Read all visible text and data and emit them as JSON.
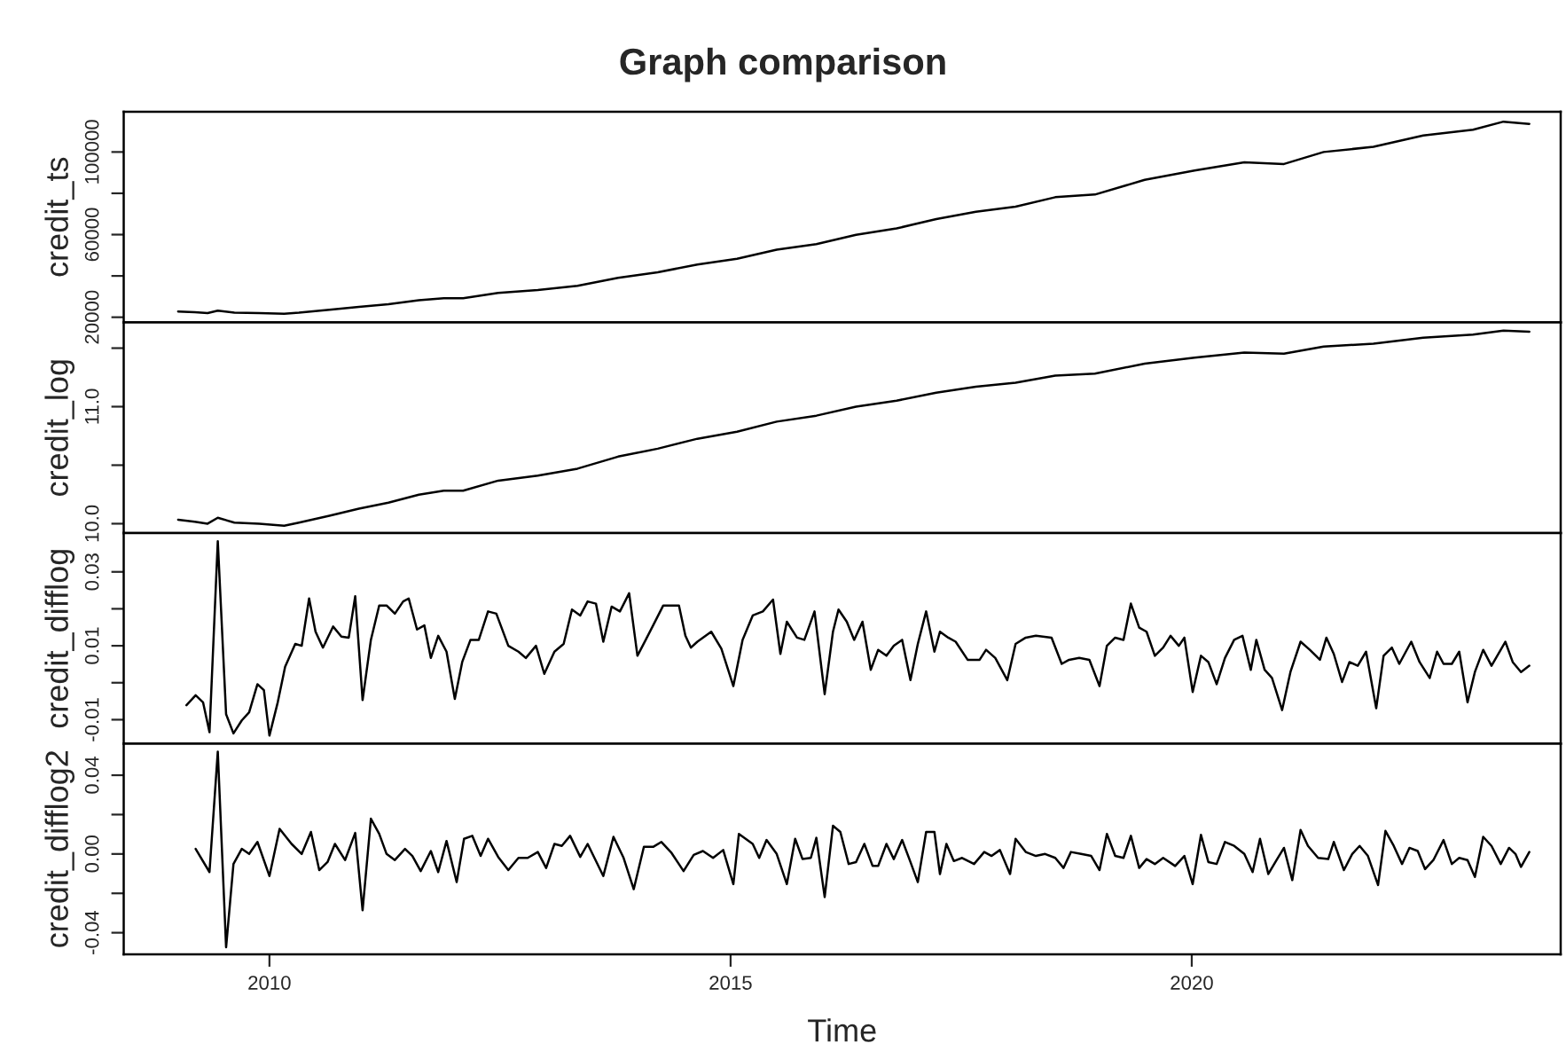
{
  "chart_data": [
    {
      "type": "line",
      "title": "Graph comparison",
      "ylabel": "credit_ts",
      "tick_labels": "y",
      "xlim": [
        2008.42,
        2024.0
      ],
      "ylim": [
        17500,
        119500
      ],
      "yticks": [
        20000,
        {
          "value": 40000,
          "label": null
        },
        60000,
        {
          "value": 80000,
          "label": null
        },
        100000
      ],
      "x": [
        2009.01,
        2009.19,
        2009.33,
        2009.44,
        2009.62,
        2009.89,
        2010.16,
        2010.32,
        2010.65,
        2010.97,
        2011.29,
        2011.62,
        2011.89,
        2012.1,
        2012.48,
        2012.91,
        2013.34,
        2013.78,
        2014.21,
        2014.64,
        2015.07,
        2015.5,
        2015.93,
        2016.36,
        2016.8,
        2017.23,
        2017.66,
        2018.09,
        2018.52,
        2018.95,
        2019.49,
        2020.03,
        2020.57,
        2021.0,
        2021.43,
        2021.97,
        2022.51,
        2023.05,
        2023.38,
        2023.66
      ],
      "series": [
        {
          "color": "#000000",
          "values": [
            22800,
            22400,
            22000,
            23200,
            22200,
            22000,
            21700,
            22200,
            23600,
            25000,
            26300,
            28200,
            29200,
            29200,
            31800,
            33200,
            35200,
            39100,
            41800,
            45500,
            48300,
            52700,
            55400,
            59900,
            63000,
            67500,
            71100,
            73500,
            78100,
            79400,
            86500,
            91000,
            95000,
            94200,
            100000,
            102500,
            108000,
            110800,
            114700,
            113600
          ]
        }
      ]
    },
    {
      "type": "line",
      "ylabel": "credit_log",
      "tick_labels": "y",
      "xlim": [
        2008.42,
        2024.0
      ],
      "ylim": [
        9.92,
        11.72
      ],
      "yticks": [
        {
          "value": 10.0,
          "label": "10.0"
        },
        {
          "value": 10.5,
          "label": null
        },
        {
          "value": 11.0,
          "label": "11.0"
        },
        {
          "value": 11.5,
          "label": null
        }
      ],
      "x": [
        2009.01,
        2009.19,
        2009.33,
        2009.44,
        2009.62,
        2009.89,
        2010.16,
        2010.32,
        2010.65,
        2010.97,
        2011.29,
        2011.62,
        2011.89,
        2012.1,
        2012.48,
        2012.91,
        2013.34,
        2013.78,
        2014.21,
        2014.64,
        2015.07,
        2015.5,
        2015.93,
        2016.36,
        2016.8,
        2017.23,
        2017.66,
        2018.09,
        2018.52,
        2018.95,
        2019.49,
        2020.03,
        2020.57,
        2021.0,
        2021.43,
        2021.97,
        2022.51,
        2023.05,
        2023.38,
        2023.66
      ],
      "series": [
        {
          "color": "#000000",
          "values": [
            10.034,
            10.017,
            10.0,
            10.051,
            10.009,
            10.0,
            9.983,
            10.009,
            10.068,
            10.128,
            10.179,
            10.248,
            10.282,
            10.282,
            10.368,
            10.41,
            10.47,
            10.573,
            10.641,
            10.726,
            10.786,
            10.872,
            10.923,
            11.0,
            11.051,
            11.12,
            11.171,
            11.205,
            11.265,
            11.282,
            11.368,
            11.419,
            11.462,
            11.453,
            11.513,
            11.538,
            11.59,
            11.615,
            11.65,
            11.641
          ]
        }
      ]
    },
    {
      "type": "line",
      "ylabel": "credit_difflog",
      "tick_labels": "y",
      "xlim": [
        2008.42,
        2024.0
      ],
      "ylim": [
        -0.0165,
        0.0405
      ],
      "yticks": [
        -0.01,
        {
          "value": 0.0,
          "label": null
        },
        0.01,
        {
          "value": 0.02,
          "label": null
        },
        0.03
      ],
      "x": [
        2009.1,
        2009.2,
        2009.28,
        2009.35,
        2009.44,
        2009.53,
        2009.61,
        2009.7,
        2009.78,
        2009.87,
        2009.94,
        2010.0,
        2010.09,
        2010.17,
        2010.28,
        2010.35,
        2010.43,
        2010.5,
        2010.58,
        2010.69,
        2010.78,
        2010.86,
        2010.93,
        2011.01,
        2011.1,
        2011.19,
        2011.27,
        2011.36,
        2011.45,
        2011.51,
        2011.6,
        2011.68,
        2011.75,
        2011.83,
        2011.92,
        2012.01,
        2012.09,
        2012.18,
        2012.27,
        2012.37,
        2012.46,
        2012.59,
        2012.7,
        2012.78,
        2012.89,
        2012.98,
        2013.09,
        2013.19,
        2013.28,
        2013.37,
        2013.45,
        2013.54,
        2013.62,
        2013.71,
        2013.8,
        2013.9,
        2013.99,
        2014.08,
        2014.16,
        2014.27,
        2014.36,
        2014.44,
        2014.51,
        2014.57,
        2014.64,
        2014.79,
        2014.9,
        2015.03,
        2015.13,
        2015.24,
        2015.35,
        2015.46,
        2015.54,
        2015.61,
        2015.72,
        2015.8,
        2015.91,
        2016.02,
        2016.11,
        2016.17,
        2016.26,
        2016.34,
        2016.43,
        2016.52,
        2016.6,
        2016.69,
        2016.77,
        2016.86,
        2016.95,
        2017.03,
        2017.12,
        2017.21,
        2017.27,
        2017.36,
        2017.44,
        2017.57,
        2017.7,
        2017.77,
        2017.87,
        2018.0,
        2018.09,
        2018.2,
        2018.31,
        2018.48,
        2018.59,
        2018.67,
        2018.78,
        2018.89,
        2019.0,
        2019.08,
        2019.17,
        2019.26,
        2019.34,
        2019.43,
        2019.51,
        2019.6,
        2019.69,
        2019.77,
        2019.86,
        2019.92,
        2020.01,
        2020.1,
        2020.18,
        2020.27,
        2020.36,
        2020.46,
        2020.55,
        2020.64,
        2020.7,
        2020.79,
        2020.87,
        2020.98,
        2021.07,
        2021.18,
        2021.28,
        2021.39,
        2021.46,
        2021.54,
        2021.63,
        2021.71,
        2021.8,
        2021.89,
        2022.0,
        2022.08,
        2022.17,
        2022.25,
        2022.38,
        2022.47,
        2022.58,
        2022.66,
        2022.73,
        2022.82,
        2022.9,
        2022.99,
        2023.07,
        2023.16,
        2023.25,
        2023.4,
        2023.48,
        2023.57,
        2023.66
      ],
      "series": [
        {
          "color": "#000000",
          "values": [
            -0.0061,
            -0.0034,
            -0.0053,
            -0.0134,
            0.0383,
            -0.0085,
            -0.0137,
            -0.0102,
            -0.008,
            -0.0004,
            -0.002,
            -0.0143,
            -0.0053,
            0.0043,
            0.0105,
            0.01,
            0.0228,
            0.0138,
            0.0095,
            0.0152,
            0.0125,
            0.0122,
            0.0234,
            -0.0047,
            0.0116,
            0.0209,
            0.0209,
            0.0187,
            0.022,
            0.0228,
            0.0144,
            0.0155,
            0.0067,
            0.0127,
            0.0084,
            -0.0044,
            0.0056,
            0.0116,
            0.0116,
            0.0193,
            0.0187,
            0.01,
            0.0084,
            0.0067,
            0.01,
            0.0024,
            0.0084,
            0.0105,
            0.0198,
            0.0182,
            0.022,
            0.0214,
            0.0111,
            0.0206,
            0.0193,
            0.0242,
            0.0073,
            0.0116,
            0.0155,
            0.0209,
            0.0209,
            0.0209,
            0.0127,
            0.0095,
            0.0111,
            0.0138,
            0.0092,
            -0.0009,
            0.0116,
            0.0182,
            0.0193,
            0.0225,
            0.0078,
            0.0165,
            0.0122,
            0.0116,
            0.0193,
            -0.0031,
            0.0138,
            0.0198,
            0.0165,
            0.0116,
            0.0165,
            0.0035,
            0.0089,
            0.0073,
            0.01,
            0.0116,
            0.0007,
            0.0105,
            0.0193,
            0.0084,
            0.0138,
            0.0122,
            0.0111,
            0.0062,
            0.0062,
            0.0089,
            0.0067,
            0.0007,
            0.0105,
            0.0122,
            0.0127,
            0.0122,
            0.0051,
            0.0062,
            0.0067,
            0.0062,
            -0.0009,
            0.01,
            0.0122,
            0.0116,
            0.0214,
            0.0149,
            0.0138,
            0.0073,
            0.0095,
            0.0127,
            0.01,
            0.0122,
            -0.0025,
            0.0073,
            0.0056,
            -0.0004,
            0.0067,
            0.0116,
            0.0127,
            0.0035,
            0.0116,
            0.0035,
            0.0013,
            -0.0074,
            0.0029,
            0.0111,
            0.0089,
            0.0062,
            0.0122,
            0.0078,
            0.0002,
            0.0056,
            0.0046,
            0.0084,
            -0.0069,
            0.0073,
            0.0095,
            0.0051,
            0.0111,
            0.0056,
            0.0013,
            0.0084,
            0.0051,
            0.0051,
            0.0084,
            -0.0053,
            0.0029,
            0.0089,
            0.0046,
            0.0111,
            0.0056,
            0.0029,
            0.0046
          ]
        }
      ]
    },
    {
      "type": "line",
      "ylabel": "credit_difflog2",
      "xlabel": "Time",
      "xlim": [
        2008.42,
        2024.0
      ],
      "ylim": [
        -0.051,
        0.056
      ],
      "xticks": [
        2010,
        2015,
        2020
      ],
      "yticks": [
        {
          "value": -0.04,
          "label": "-0.04"
        },
        {
          "value": -0.02,
          "label": null
        },
        {
          "value": 0.0,
          "label": "0.00"
        },
        {
          "value": 0.02,
          "label": null
        },
        {
          "value": 0.04,
          "label": "0.04"
        }
      ],
      "x": [
        2009.2,
        2009.35,
        2009.44,
        2009.53,
        2009.61,
        2009.7,
        2009.78,
        2009.87,
        2010.0,
        2010.11,
        2010.24,
        2010.35,
        2010.45,
        2010.54,
        2010.63,
        2010.71,
        2010.82,
        2010.93,
        2011.01,
        2011.1,
        2011.19,
        2011.27,
        2011.36,
        2011.47,
        2011.55,
        2011.64,
        2011.75,
        2011.83,
        2011.92,
        2012.03,
        2012.11,
        2012.2,
        2012.29,
        2012.37,
        2012.48,
        2012.59,
        2012.7,
        2012.8,
        2012.91,
        2013.0,
        2013.09,
        2013.17,
        2013.26,
        2013.37,
        2013.45,
        2013.62,
        2013.73,
        2013.84,
        2013.95,
        2014.06,
        2014.16,
        2014.25,
        2014.36,
        2014.49,
        2014.6,
        2014.7,
        2014.81,
        2014.92,
        2015.03,
        2015.09,
        2015.24,
        2015.31,
        2015.39,
        2015.5,
        2015.61,
        2015.7,
        2015.78,
        2015.87,
        2015.93,
        2016.02,
        2016.11,
        2016.19,
        2016.28,
        2016.36,
        2016.45,
        2016.54,
        2016.6,
        2016.69,
        2016.77,
        2016.86,
        2016.95,
        2017.03,
        2017.12,
        2017.21,
        2017.27,
        2017.34,
        2017.42,
        2017.51,
        2017.64,
        2017.75,
        2017.83,
        2017.92,
        2018.03,
        2018.09,
        2018.2,
        2018.31,
        2018.41,
        2018.52,
        2018.61,
        2018.69,
        2018.8,
        2018.91,
        2019.0,
        2019.08,
        2019.17,
        2019.26,
        2019.34,
        2019.43,
        2019.51,
        2019.6,
        2019.69,
        2019.82,
        2019.92,
        2020.01,
        2020.1,
        2020.18,
        2020.27,
        2020.36,
        2020.46,
        2020.57,
        2020.66,
        2020.74,
        2020.83,
        2020.92,
        2021.0,
        2021.09,
        2021.18,
        2021.26,
        2021.37,
        2021.48,
        2021.54,
        2021.65,
        2021.74,
        2021.82,
        2021.91,
        2022.02,
        2022.1,
        2022.19,
        2022.28,
        2022.36,
        2022.45,
        2022.53,
        2022.62,
        2022.73,
        2022.82,
        2022.9,
        2022.99,
        2023.07,
        2023.16,
        2023.25,
        2023.35,
        2023.44,
        2023.51,
        2023.57,
        2023.66
      ],
      "series": [
        {
          "color": "#000000",
          "values": [
            0.0026,
            -0.0092,
            0.052,
            -0.0474,
            -0.0051,
            0.0026,
            0.0,
            0.0061,
            -0.0112,
            0.0128,
            0.0051,
            0.0,
            0.0112,
            -0.0082,
            -0.0041,
            0.0051,
            -0.0031,
            0.0107,
            -0.0286,
            0.0179,
            0.0102,
            0.0,
            -0.0031,
            0.0026,
            -0.001,
            -0.0087,
            0.0015,
            -0.0092,
            0.0066,
            -0.0143,
            0.0077,
            0.0092,
            -0.001,
            0.0077,
            -0.0015,
            -0.0082,
            -0.002,
            -0.002,
            0.001,
            -0.0071,
            0.0051,
            0.0041,
            0.0092,
            -0.0015,
            0.0051,
            -0.0112,
            0.0087,
            -0.002,
            -0.0179,
            0.0036,
            0.0036,
            0.0061,
            0.0005,
            -0.0087,
            -0.0005,
            0.0015,
            -0.002,
            0.002,
            -0.0153,
            0.0102,
            0.0051,
            -0.002,
            0.0071,
            0.0,
            -0.0153,
            0.0077,
            -0.0026,
            -0.002,
            0.0082,
            -0.0219,
            0.0143,
            0.0112,
            -0.0051,
            -0.0041,
            0.0051,
            -0.0061,
            -0.0061,
            0.0051,
            -0.0026,
            0.0071,
            -0.0041,
            -0.0143,
            0.0112,
            0.0112,
            -0.0102,
            0.0051,
            -0.0036,
            -0.002,
            -0.0051,
            0.001,
            -0.001,
            0.002,
            -0.0102,
            0.0077,
            0.001,
            -0.001,
            0.0,
            -0.002,
            -0.0071,
            0.001,
            0.0,
            -0.001,
            -0.0082,
            0.0102,
            -0.001,
            -0.002,
            0.0092,
            -0.0071,
            -0.0026,
            -0.0051,
            -0.002,
            -0.0061,
            -0.001,
            -0.0153,
            0.0097,
            -0.0041,
            -0.0051,
            0.0061,
            0.0041,
            0.0,
            -0.0092,
            0.0077,
            -0.0102,
            -0.0031,
            0.0031,
            -0.0133,
            0.0122,
            0.0041,
            -0.002,
            -0.0026,
            0.0061,
            -0.0082,
            0.0,
            0.0041,
            -0.001,
            -0.0158,
            0.0117,
            0.0041,
            -0.0051,
            0.0031,
            0.0015,
            -0.0077,
            -0.0031,
            0.0071,
            -0.0051,
            -0.002,
            -0.0031,
            -0.0117,
            0.0087,
            0.0041,
            -0.0051,
            0.0031,
            0.0,
            -0.0066,
            0.001
          ]
        }
      ]
    }
  ]
}
